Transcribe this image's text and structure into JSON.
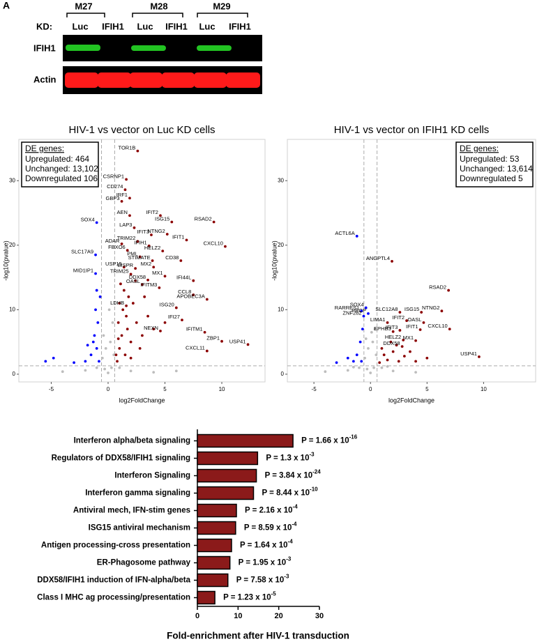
{
  "panel_label": "A",
  "blot": {
    "groups": [
      "M27",
      "M28",
      "M29"
    ],
    "kd_label": "KD:",
    "lanes": [
      "Luc",
      "IFIH1",
      "Luc",
      "IFIH1",
      "Luc",
      "IFIH1"
    ],
    "rows": [
      "IFIH1",
      "Actin"
    ]
  },
  "chart_data": [
    {
      "type": "scatter",
      "title": "HIV-1 vs vector on Luc KD cells",
      "x_label": "log2FoldChange",
      "y_label": "-log10(pvalue)",
      "xlim": [
        -7.85,
        13.8
      ],
      "ylim": [
        -1.2,
        36.4
      ],
      "xticks": [
        -5,
        0,
        5,
        10
      ],
      "yticks": [
        0,
        10,
        20,
        30
      ],
      "thresholds": {
        "x": [
          -0.58,
          0.58
        ],
        "y": 1.3
      },
      "legend_title": "DE genes:",
      "legend_position": "top-left",
      "series": [
        {
          "name": "Unchanged: 13,102",
          "color": "#bdbdbd",
          "x": [
            0,
            0.3,
            -0.3,
            0.5,
            -0.5,
            0.2,
            -0.2,
            0.4,
            2,
            -2,
            4,
            -4,
            1,
            -1,
            6,
            0.1,
            -0.4
          ],
          "y": [
            0.2,
            1,
            0.8,
            3,
            2.5,
            5,
            4,
            8,
            0.5,
            0.6,
            0.3,
            0.4,
            1,
            1,
            0.5,
            10,
            6
          ]
        },
        {
          "name": "Upregulated: 464",
          "color": "#8b0000",
          "x": [
            2.6,
            1.6,
            1.5,
            1.2,
            1.9,
            1.9,
            2.3,
            1.2,
            1.7,
            2.6,
            3.6,
            3.8,
            4.6,
            5.6,
            5.2,
            6.9,
            9.3,
            4.8,
            10.3,
            2.8,
            3.9,
            6.4,
            2.4,
            4.0,
            1.4,
            2.0,
            5.0,
            3.5,
            3.0,
            7.5,
            4.5,
            7.5,
            8.7,
            1.6,
            6.0,
            6.5,
            4.6,
            8.5,
            10.0,
            12.3,
            8.7,
            0.8,
            1.0,
            1.2,
            1.5,
            2.0,
            0.9,
            1.3,
            1.8,
            2.5,
            3.0,
            1.1,
            1.6,
            2.2,
            3.5,
            0.7,
            2.8,
            4.0,
            1.4,
            2.0,
            1.0,
            3.2,
            0.9,
            5.0,
            1.7,
            2.4
          ],
          "y": [
            34.6,
            30.2,
            28.6,
            26.8,
            27.3,
            24.6,
            22.7,
            20.2,
            19.2,
            20.6,
            19.9,
            21.6,
            24.6,
            23.6,
            21.7,
            20.8,
            23.6,
            19.1,
            19.8,
            18.2,
            17.6,
            17.6,
            16.4,
            16.6,
            16.6,
            15.5,
            15.2,
            14.6,
            13.9,
            14.5,
            13.4,
            12.3,
            11.6,
            10.6,
            10.3,
            8.4,
            6.7,
            6.5,
            5.1,
            4.6,
            3.6,
            2,
            4,
            6,
            3,
            5,
            8,
            10,
            12,
            8,
            6,
            14,
            9,
            11,
            9,
            3,
            4,
            7,
            13,
            2.5,
            11,
            12,
            5.5,
            8,
            7,
            14.5
          ],
          "labels": [
            "TOR1B",
            "CSRNP1",
            "CD274",
            "GBP3",
            "IRF1",
            "AEN",
            "LAP3",
            "ADAR",
            "FBXO6",
            "TRIM22",
            "IFIH1",
            "IFIT3",
            "IFIT2",
            "ISG15",
            "NTNG2",
            "IFIT1",
            "RSAD2",
            "HELZ2",
            "CXCL10",
            "PML",
            "STIMATE",
            "CD38",
            "BISPR",
            "MX2",
            "USP15",
            "TRIM25",
            "MX1",
            "DDX58",
            "OASL",
            "IFI44L",
            "IFITM3",
            "CCL8",
            "APOBEC3A",
            "LDHB",
            "ISG20",
            "IFI27",
            "NEXN",
            "IFITM1",
            "ZBP1",
            "USP41",
            "CXCL11",
            null,
            null,
            null,
            null,
            null,
            null,
            null,
            null,
            null,
            null,
            null,
            null,
            null,
            null,
            null,
            null,
            null,
            null,
            null,
            null,
            null,
            null,
            null,
            null,
            null
          ]
        },
        {
          "name": "Downregulated 106",
          "color": "#0000ff",
          "x": [
            -1.0,
            -1.1,
            -1.1,
            -0.8,
            -1.0,
            -1.2,
            -0.9,
            -1.1,
            -1.5,
            -2.0,
            -3,
            -0.7,
            -1.3,
            -4.8,
            -5.5,
            -1.8,
            -1.0
          ],
          "y": [
            23.5,
            18.5,
            15.6,
            2,
            4,
            6,
            8,
            10,
            3,
            2,
            1.8,
            12,
            5,
            2.5,
            2.0,
            4.5,
            13
          ],
          "labels": [
            "SOX4",
            "SLC17A9",
            "MID1IP1",
            null,
            null,
            null,
            null,
            null,
            null,
            null,
            null,
            null,
            null,
            null,
            null,
            null,
            null
          ]
        }
      ]
    },
    {
      "type": "scatter",
      "title": "HIV-1 vs vector on IFIH1 KD cells",
      "x_label": "log2FoldChange",
      "y_label": "-log10(pvalue)",
      "xlim": [
        -7.35,
        14.6
      ],
      "ylim": [
        -1.2,
        36.4
      ],
      "xticks": [
        -5,
        0,
        5,
        10
      ],
      "yticks": [
        0,
        10,
        20,
        30
      ],
      "thresholds": {
        "x": [
          -0.58,
          0.58
        ],
        "y": 1.3
      },
      "legend_title": "DE genes:",
      "legend_position": "top-right",
      "series": [
        {
          "name": "Unchanged: 13,614",
          "color": "#bdbdbd",
          "x": [
            0,
            0.3,
            -0.3,
            0.5,
            -0.5,
            0.2,
            -0.2,
            0.4,
            2,
            -2,
            4,
            -4,
            1,
            -1,
            0.1,
            -0.4,
            1.5,
            -1.5
          ],
          "y": [
            0.2,
            1,
            0.8,
            3,
            2.5,
            5,
            4,
            7,
            0.5,
            0.6,
            0.3,
            0.4,
            1,
            1,
            6.5,
            5.5,
            1.2,
            1.1
          ]
        },
        {
          "name": "Upregulated: 53",
          "color": "#8b0000",
          "x": [
            1.9,
            6.9,
            2.6,
            4.5,
            6.3,
            3.2,
            4.7,
            1.5,
            2.0,
            2.6,
            4.4,
            2.9,
            4.0,
            7.0,
            2.8,
            9.6,
            0.8,
            1.2,
            1.5,
            2,
            2.5,
            3,
            1,
            3.5,
            4,
            1.8,
            5,
            2.3
          ],
          "y": [
            17.5,
            13.0,
            9.6,
            9.6,
            9.8,
            8.3,
            8.0,
            8.0,
            6.6,
            6.8,
            6.9,
            5.3,
            5.2,
            7.0,
            4.3,
            2.7,
            1.8,
            3,
            2.2,
            3.5,
            2,
            2.8,
            4,
            3.5,
            2,
            5,
            2.5,
            4.5
          ],
          "labels": [
            "ANGPTL4",
            "RSAD2",
            "SLC12A8",
            "ISG15",
            "NTNG2",
            "IFIT2",
            "OASL",
            "LIMA1",
            "EPHB3",
            "IFIT3",
            "IFIT1",
            "HELZ2",
            "MX1",
            "CXCL10",
            "DDX58",
            "USP41",
            null,
            null,
            null,
            null,
            null,
            null,
            null,
            null,
            null,
            null,
            null,
            null
          ]
        },
        {
          "name": "Downregulated 5",
          "color": "#0000ff",
          "x": [
            -1.2,
            -0.4,
            -0.8,
            -0.2,
            -0.6,
            -0.8,
            -1.2,
            -1.5,
            -0.9,
            -2,
            -3,
            -0.7
          ],
          "y": [
            21.4,
            10.3,
            9.8,
            9.4,
            9.0,
            2,
            3,
            2,
            5,
            2.5,
            1.8,
            7
          ],
          "labels": [
            "ACTL6A",
            "SOX4",
            "RARRES1",
            "PRCP",
            "ZNF282",
            null,
            null,
            null,
            null,
            null,
            null,
            null
          ]
        }
      ]
    },
    {
      "type": "bar",
      "orientation": "horizontal",
      "x_label": "Fold-enrichment after HIV-1 transduction",
      "categories": [
        "Interferon alpha/beta signaling",
        "Regulators of DDX58/IFIH1 signaling",
        "Interferon Signaling",
        "Interferon gamma signaling",
        "Antiviral mech, IFN-stim genes",
        "ISG15 antiviral mechanism",
        "Antigen processing-cross presentation",
        "ER-Phagosome pathway",
        "DDX58/IFIH1 induction of IFN-alpha/beta",
        "Class I MHC ag processing/presentation"
      ],
      "values": [
        23.5,
        14.8,
        14.5,
        13.8,
        9.6,
        9.4,
        8.4,
        8.0,
        7.5,
        4.3
      ],
      "color": "#8b1a1a",
      "xlim": [
        0,
        30
      ],
      "xticks": [
        0,
        10,
        20,
        30
      ],
      "annotations": [
        {
          "text": "P = 1.66 x 10",
          "sup": "-16"
        },
        {
          "text": "P = 1.3 x 10",
          "sup": "-3"
        },
        {
          "text": "P = 3.84 x 10",
          "sup": "-24"
        },
        {
          "text": "P = 8.44 x 10",
          "sup": "-10"
        },
        {
          "text": "P = 2.16 x 10",
          "sup": "-4"
        },
        {
          "text": "P = 8.59 x 10",
          "sup": "-4"
        },
        {
          "text": "P = 1.64 x 10",
          "sup": "-4"
        },
        {
          "text": "P = 1.95 x 10",
          "sup": "-3"
        },
        {
          "text": "P = 7.58 x 10",
          "sup": "-3"
        },
        {
          "text": "P = 1.23 x 10",
          "sup": "-5"
        }
      ]
    }
  ]
}
